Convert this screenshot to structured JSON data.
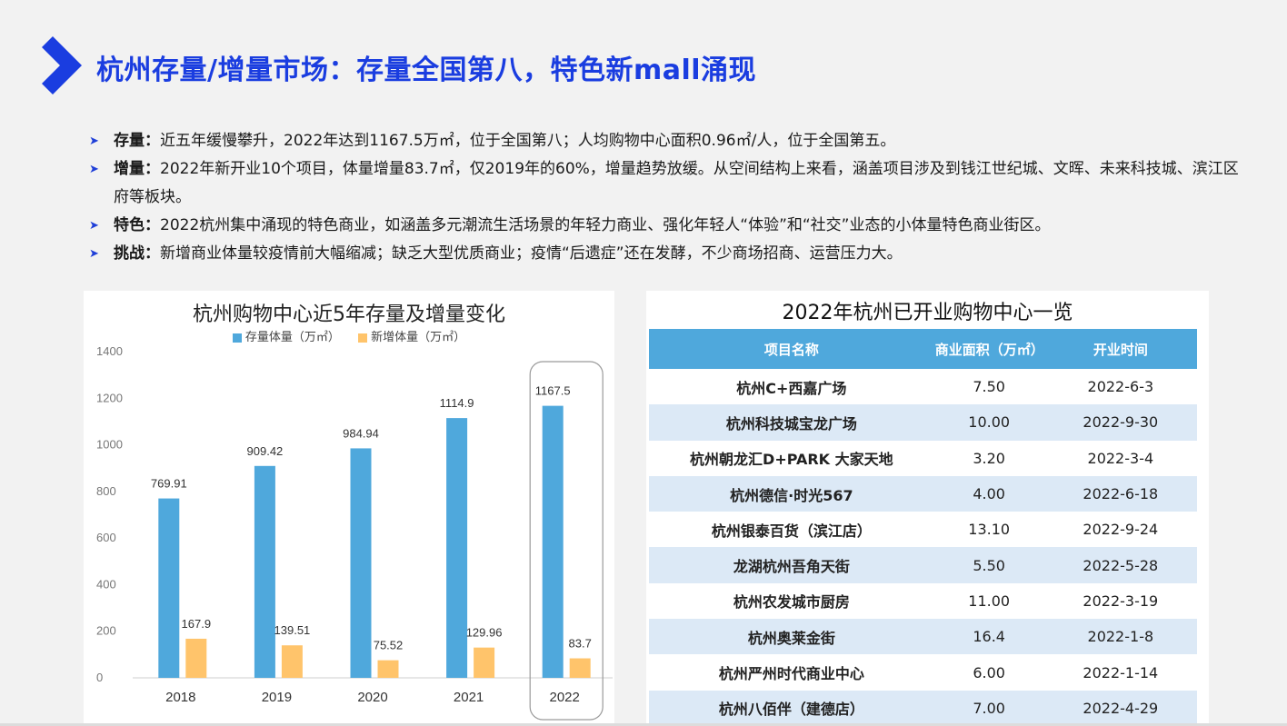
{
  "page": {
    "title": "杭州存量/增量市场：存量全国第八，特色新mall涌现"
  },
  "bullets": [
    {
      "label": "存量：",
      "text": "近五年缓慢攀升，2022年达到1167.5万㎡，位于全国第八；人均购物中心面积0.96㎡/人，位于全国第五。"
    },
    {
      "label": "增量：",
      "text": "2022年新开业10个项目，体量增量83.7㎡，仅2019年的60%，增量趋势放缓。从空间结构上来看，涵盖项目涉及到钱江世纪城、文晖、未来科技城、滨江区府等板块。"
    },
    {
      "label": "特色：",
      "text": "2022杭州集中涌现的特色商业，如涵盖多元潮流生活场景的年轻力商业、强化年轻人“体验”和“社交”业态的小体量特色商业街区。"
    },
    {
      "label": "挑战：",
      "text": "新增商业体量较疫情前大幅缩减；缺乏大型优质商业；疫情“后遗症”还在发酵，不少商场招商、运营压力大。"
    }
  ],
  "chart_data": {
    "type": "bar",
    "title": "杭州购物中心近5年存量及增量变化",
    "categories": [
      "2018",
      "2019",
      "2020",
      "2021",
      "2022"
    ],
    "series": [
      {
        "name": "存量体量（万㎡）",
        "values": [
          769.91,
          909.42,
          984.94,
          1114.9,
          1167.5
        ],
        "labels": [
          "769.91",
          "909.42",
          "984.94",
          "1114.9",
          "1167.5"
        ],
        "color": "#4fa8dc"
      },
      {
        "name": "新增体量（万㎡）",
        "values": [
          167.9,
          139.51,
          75.52,
          129.96,
          83.7
        ],
        "labels": [
          "167.9",
          "139.51",
          "75.52",
          "129.96",
          "83.7"
        ],
        "color": "#ffc46b"
      }
    ],
    "ylim": [
      0,
      1400
    ],
    "yticks": [
      "0",
      "200",
      "400",
      "600",
      "800",
      "1000",
      "1200",
      "1400"
    ],
    "legend_position": "top",
    "highlight_category": "2022",
    "grid": false
  },
  "table": {
    "title": "2022年杭州已开业购物中心一览",
    "headers": [
      "项目名称",
      "商业面积（万㎡）",
      "开业时间"
    ],
    "rows": [
      [
        "杭州C+西嘉广场",
        "7.50",
        "2022-6-3"
      ],
      [
        "杭州科技城宝龙广场",
        "10.00",
        "2022-9-30"
      ],
      [
        "杭州朝龙汇D+PARK 大家天地",
        "3.20",
        "2022-3-4"
      ],
      [
        "杭州德信·时光567",
        "4.00",
        "2022-6-18"
      ],
      [
        "杭州银泰百货（滨江店）",
        "13.10",
        "2022-9-24"
      ],
      [
        "龙湖杭州吾角天街",
        "5.50",
        "2022-5-28"
      ],
      [
        "杭州农发城市厨房",
        "11.00",
        "2022-3-19"
      ],
      [
        "杭州奥莱金街",
        "16.4",
        "2022-1-8"
      ],
      [
        "杭州严州时代商业中心",
        "6.00",
        "2022-1-14"
      ],
      [
        "杭州八佰伴（建德店）",
        "7.00",
        "2022-4-29"
      ]
    ]
  },
  "colors": {
    "accent": "#1a3de0",
    "bar_stock": "#4fa8dc",
    "bar_new": "#ffc46b",
    "table_header": "#4fa8dc",
    "table_alt_row": "#dce9f6"
  }
}
